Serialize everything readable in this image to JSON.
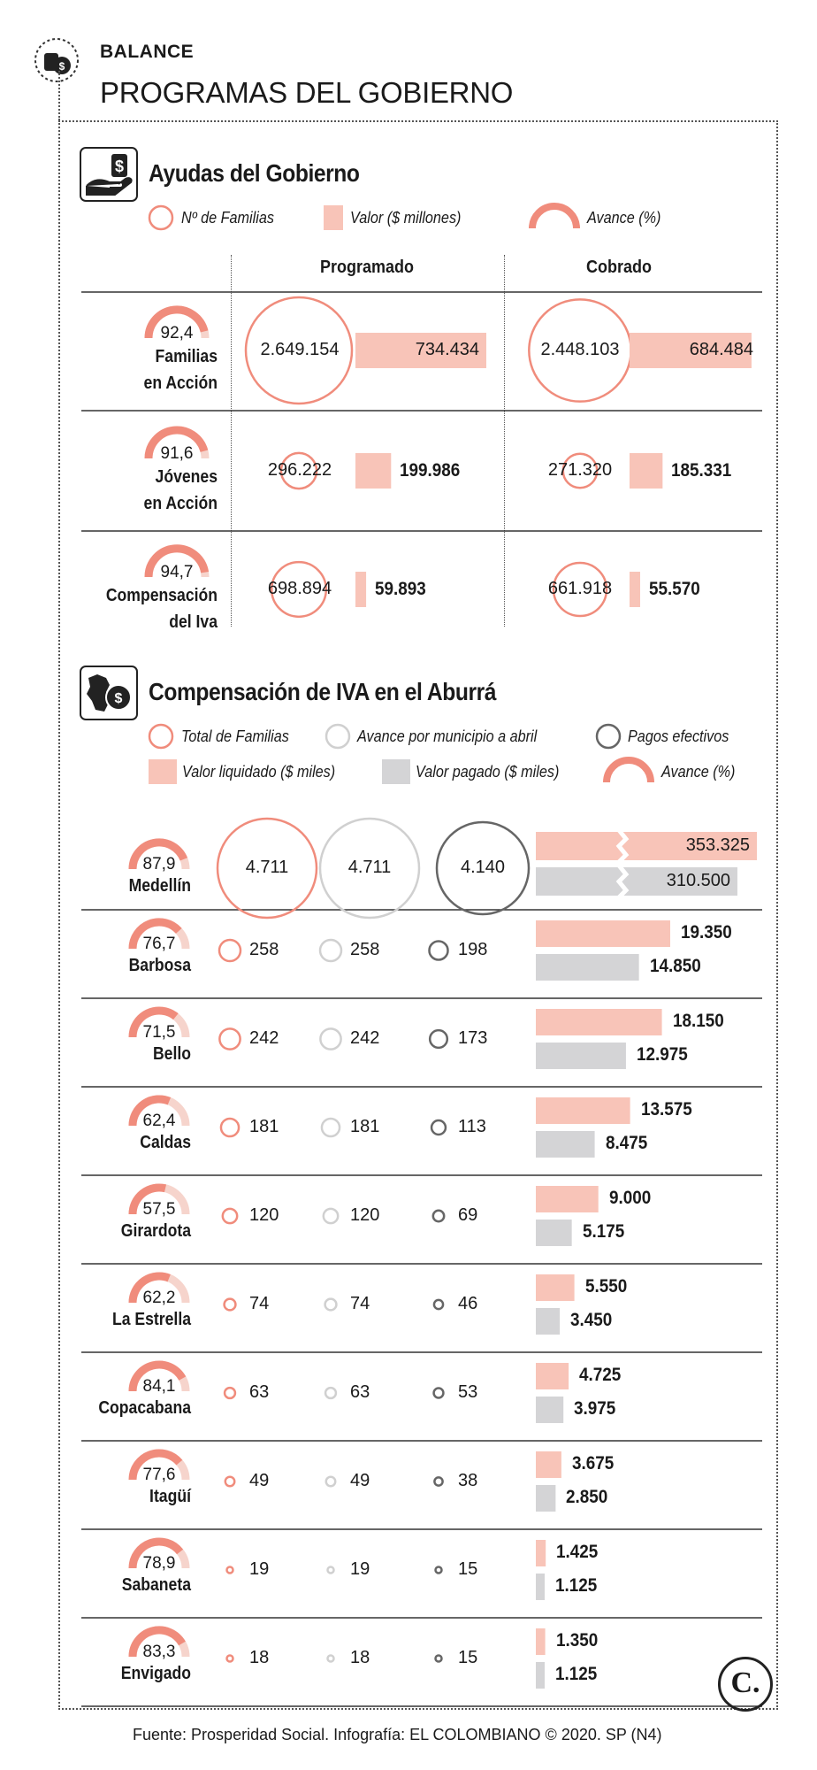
{
  "header": {
    "kicker": "BALANCE",
    "title": "PROGRAMAS DEL GOBIERNO"
  },
  "colors": {
    "salmon": "#f08c7c",
    "salmon_fill": "#f8c4b8",
    "light_gray": "#d4d4d6",
    "gray_circle": "#d0d0d0",
    "dark_circle": "#666666"
  },
  "section1": {
    "title": "Ayudas del Gobierno",
    "icon": "hand-money-icon",
    "legend": {
      "families": "Nº de Familias",
      "value": "Valor ($ millones)",
      "progress": "Avance (%)"
    },
    "col_programado": "Programado",
    "col_cobrado": "Cobrado"
  },
  "section2": {
    "title": "Compensación de IVA en el Aburrá",
    "icon": "antioquia-map-coin-icon",
    "legend": {
      "total_families": "Total de Familias",
      "avance_municipio": "Avance por municipio a abril",
      "pagos": "Pagos efectivos",
      "valor_liquidado": "Valor liquidado ($ miles)",
      "valor_pagado": "Valor pagado ($ miles)",
      "progress": "Avance (%)"
    }
  },
  "chart_data": [
    {
      "type": "table",
      "title": "Ayudas del Gobierno",
      "columns": [
        "Programado",
        "Cobrado"
      ],
      "series": [
        {
          "name": "Nº de Familias"
        },
        {
          "name": "Valor ($ millones)"
        },
        {
          "name": "Avance (%)"
        }
      ],
      "rows": [
        {
          "label_lines": [
            "Familias",
            "en Acción"
          ],
          "avance": 92.4,
          "avance_label": "92,4",
          "prog_fam": 2649154,
          "prog_fam_label": "2.649.154",
          "prog_val": 734434,
          "prog_val_label": "734.434",
          "cob_fam": 2448103,
          "cob_fam_label": "2.448.103",
          "cob_val": 684484,
          "cob_val_label": "684.484"
        },
        {
          "label_lines": [
            "Jóvenes",
            "en Acción"
          ],
          "avance": 91.6,
          "avance_label": "91,6",
          "prog_fam": 296222,
          "prog_fam_label": "296.222",
          "prog_val": 199986,
          "prog_val_label": "199.986",
          "cob_fam": 271320,
          "cob_fam_label": "271.320",
          "cob_val": 185331,
          "cob_val_label": "185.331"
        },
        {
          "label_lines": [
            "Compensación",
            "del Iva"
          ],
          "avance": 94.7,
          "avance_label": "94,7",
          "prog_fam": 698894,
          "prog_fam_label": "698.894",
          "prog_val": 59893,
          "prog_val_label": "59.893",
          "cob_fam": 661918,
          "cob_fam_label": "661.918",
          "cob_val": 55570,
          "cob_val_label": "55.570"
        }
      ]
    },
    {
      "type": "table",
      "title": "Compensación de IVA en el Aburrá",
      "series": [
        {
          "name": "Total de Familias"
        },
        {
          "name": "Avance por municipio a abril"
        },
        {
          "name": "Pagos efectivos"
        },
        {
          "name": "Valor liquidado ($ miles)"
        },
        {
          "name": "Valor pagado ($ miles)"
        },
        {
          "name": "Avance (%)"
        }
      ],
      "rows": [
        {
          "name": "Medellín",
          "avance": 87.9,
          "avance_label": "87,9",
          "total": 4711,
          "total_label": "4.711",
          "avance_mun": 4711,
          "avance_mun_label": "4.711",
          "pagos": 4140,
          "pagos_label": "4.140",
          "liquidado": 353325,
          "liquidado_label": "353.325",
          "pagado": 310500,
          "pagado_label": "310.500"
        },
        {
          "name": "Barbosa",
          "avance": 76.7,
          "avance_label": "76,7",
          "total": 258,
          "total_label": "258",
          "avance_mun": 258,
          "avance_mun_label": "258",
          "pagos": 198,
          "pagos_label": "198",
          "liquidado": 19350,
          "liquidado_label": "19.350",
          "pagado": 14850,
          "pagado_label": "14.850"
        },
        {
          "name": "Bello",
          "avance": 71.5,
          "avance_label": "71,5",
          "total": 242,
          "total_label": "242",
          "avance_mun": 242,
          "avance_mun_label": "242",
          "pagos": 173,
          "pagos_label": "173",
          "liquidado": 18150,
          "liquidado_label": "18.150",
          "pagado": 12975,
          "pagado_label": "12.975"
        },
        {
          "name": "Caldas",
          "avance": 62.4,
          "avance_label": "62,4",
          "total": 181,
          "total_label": "181",
          "avance_mun": 181,
          "avance_mun_label": "181",
          "pagos": 113,
          "pagos_label": "113",
          "liquidado": 13575,
          "liquidado_label": "13.575",
          "pagado": 8475,
          "pagado_label": "8.475"
        },
        {
          "name": "Girardota",
          "avance": 57.5,
          "avance_label": "57,5",
          "total": 120,
          "total_label": "120",
          "avance_mun": 120,
          "avance_mun_label": "120",
          "pagos": 69,
          "pagos_label": "69",
          "liquidado": 9000,
          "liquidado_label": "9.000",
          "pagado": 5175,
          "pagado_label": "5.175"
        },
        {
          "name": "La Estrella",
          "avance": 62.2,
          "avance_label": "62,2",
          "total": 74,
          "total_label": "74",
          "avance_mun": 74,
          "avance_mun_label": "74",
          "pagos": 46,
          "pagos_label": "46",
          "liquidado": 5550,
          "liquidado_label": "5.550",
          "pagado": 3450,
          "pagado_label": "3.450"
        },
        {
          "name": "Copacabana",
          "avance": 84.1,
          "avance_label": "84,1",
          "total": 63,
          "total_label": "63",
          "avance_mun": 63,
          "avance_mun_label": "63",
          "pagos": 53,
          "pagos_label": "53",
          "liquidado": 4725,
          "liquidado_label": "4.725",
          "pagado": 3975,
          "pagado_label": "3.975"
        },
        {
          "name": "Itagüí",
          "avance": 77.6,
          "avance_label": "77,6",
          "total": 49,
          "total_label": "49",
          "avance_mun": 49,
          "avance_mun_label": "49",
          "pagos": 38,
          "pagos_label": "38",
          "liquidado": 3675,
          "liquidado_label": "3.675",
          "pagado": 2850,
          "pagado_label": "2.850"
        },
        {
          "name": "Sabaneta",
          "avance": 78.9,
          "avance_label": "78,9",
          "total": 19,
          "total_label": "19",
          "avance_mun": 19,
          "avance_mun_label": "19",
          "pagos": 15,
          "pagos_label": "15",
          "liquidado": 1425,
          "liquidado_label": "1.425",
          "pagado": 1125,
          "pagado_label": "1.125"
        },
        {
          "name": "Envigado",
          "avance": 83.3,
          "avance_label": "83,3",
          "total": 18,
          "total_label": "18",
          "avance_mun": 18,
          "avance_mun_label": "18",
          "pagos": 15,
          "pagos_label": "15",
          "liquidado": 1350,
          "liquidado_label": "1.350",
          "pagado": 1125,
          "pagado_label": "1.125"
        }
      ]
    }
  ],
  "footer": {
    "source": "Fuente: Prosperidad Social. Infografía: EL COLOMBIANO © 2020. SP (N4)",
    "logo": "C."
  }
}
